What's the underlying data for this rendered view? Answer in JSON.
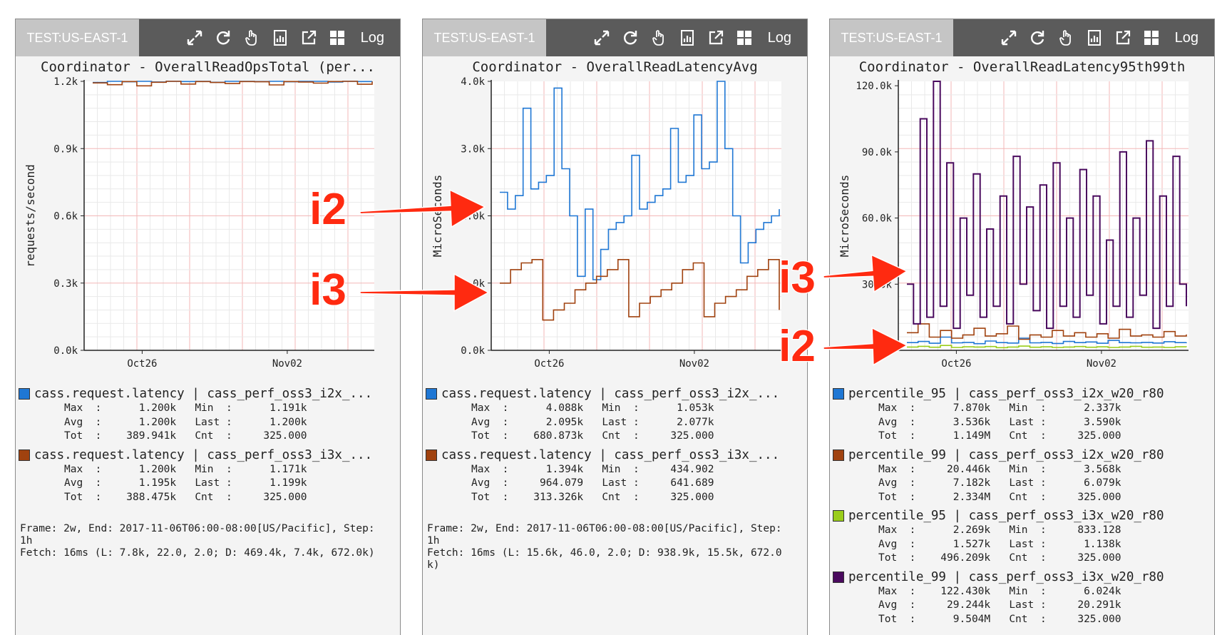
{
  "panels": [
    {
      "tab": "TEST:US-EAST-1",
      "tools": [
        "expand-icon",
        "refresh-icon",
        "pointer-hand-icon",
        "report-icon",
        "popout-icon",
        "grid-icon"
      ],
      "log_label": "Log",
      "title": "Coordinator - OverallReadOpsTotal (per...",
      "chart_data": {
        "type": "line",
        "title": "Coordinator - OverallReadOpsTotal (per...",
        "xlabel": "",
        "ylabel": "requests/second",
        "yticks": [
          "0.0k",
          "0.3k",
          "0.6k",
          "0.9k",
          "1.2k"
        ],
        "ylim": [
          0,
          1200
        ],
        "xticks": [
          "Oct26",
          "Nov02"
        ],
        "grid": true,
        "series": [
          {
            "name": "cass.request.latency | cass_perf_oss3_i2x_...",
            "color": "#1f77d4",
            "values": [
              1195,
              1200,
              1198,
              1200,
              1197,
              1200,
              1199,
              1200,
              1196,
              1200,
              1200,
              1199,
              1200,
              1198,
              1200,
              1200,
              1197,
              1200,
              1199,
              1200
            ]
          },
          {
            "name": "cass.request.latency | cass_perf_oss3_i3x_...",
            "color": "#a0420f",
            "values": [
              1193,
              1185,
              1199,
              1180,
              1196,
              1200,
              1188,
              1199,
              1195,
              1190,
              1199,
              1198,
              1184,
              1199,
              1197,
              1192,
              1199,
              1200,
              1187,
              1199
            ]
          }
        ]
      },
      "legend": [
        {
          "color": "#1f77d4",
          "label": "cass.request.latency | cass_perf_oss3_i2x_...",
          "max": "1.200k",
          "min": "1.191k",
          "avg": "1.200k",
          "last": "1.200k",
          "tot": "389.941k",
          "cnt": "325.000"
        },
        {
          "color": "#a0420f",
          "label": "cass.request.latency | cass_perf_oss3_i3x_...",
          "max": "1.200k",
          "min": "1.171k",
          "avg": "1.195k",
          "last": "1.199k",
          "tot": "388.475k",
          "cnt": "325.000"
        }
      ],
      "frame": "Frame: 2w, End: 2017-11-06T06:00-08:00[US/Pacific], Step:\n1h\nFetch: 16ms (L: 7.8k, 22.0, 2.0; D: 469.4k, 7.4k, 672.0k)"
    },
    {
      "tab": "TEST:US-EAST-1",
      "tools": [
        "expand-icon",
        "refresh-icon",
        "pointer-hand-icon",
        "report-icon",
        "popout-icon",
        "grid-icon"
      ],
      "log_label": "Log",
      "title": "Coordinator - OverallReadLatencyAvg",
      "chart_data": {
        "type": "line",
        "title": "Coordinator - OverallReadLatencyAvg",
        "xlabel": "",
        "ylabel": "MicroSeconds",
        "yticks": [
          "0.0k",
          "1.0k",
          "2.0k",
          "3.0k",
          "4.0k"
        ],
        "ylim": [
          0,
          4000
        ],
        "xticks": [
          "Oct26",
          "Nov02"
        ],
        "grid": true,
        "series": [
          {
            "name": "cass.request.latency | cass_perf_oss3_i2x_...",
            "color": "#1f77d4",
            "values": [
              2350,
              2100,
              2300,
              3600,
              2400,
              2500,
              2600,
              3900,
              2700,
              2000,
              1100,
              2100,
              1050,
              1500,
              1800,
              1900,
              2000,
              2900,
              2100,
              2200,
              2300,
              2400,
              3300,
              2500,
              2600,
              3500,
              2700,
              2800,
              4100,
              3000,
              2000,
              1300,
              1600,
              1800,
              1900,
              2000,
              2100
            ]
          },
          {
            "name": "cass.request.latency | cass_perf_oss3_i3x_...",
            "color": "#a0420f",
            "values": [
              1000,
              1200,
              1300,
              1350,
              450,
              600,
              700,
              900,
              1000,
              1100,
              1200,
              1350,
              500,
              700,
              800,
              900,
              1000,
              1200,
              1300,
              500,
              700,
              800,
              900,
              1100,
              1200,
              1350,
              600
            ]
          }
        ]
      },
      "legend": [
        {
          "color": "#1f77d4",
          "label": "cass.request.latency | cass_perf_oss3_i2x_...",
          "max": "4.088k",
          "min": "1.053k",
          "avg": "2.095k",
          "last": "2.077k",
          "tot": "680.873k",
          "cnt": "325.000"
        },
        {
          "color": "#a0420f",
          "label": "cass.request.latency | cass_perf_oss3_i3x_...",
          "max": "1.394k",
          "min": "434.902",
          "avg": "964.079",
          "last": "641.689",
          "tot": "313.326k",
          "cnt": "325.000"
        }
      ],
      "frame": "Frame: 2w, End: 2017-11-06T06:00-08:00[US/Pacific], Step:\n1h\nFetch: 16ms (L: 15.6k, 46.0, 2.0; D: 938.9k, 15.5k, 672.0\nk)"
    },
    {
      "tab": "TEST:US-EAST-1",
      "tools": [
        "expand-icon",
        "refresh-icon",
        "pointer-hand-icon",
        "report-icon",
        "popout-icon",
        "grid-icon"
      ],
      "log_label": "Log",
      "title": "Coordinator - OverallReadLatency95th99th",
      "chart_data": {
        "type": "line",
        "title": "Coordinator - OverallReadLatency95th99th",
        "xlabel": "",
        "ylabel": "MicroSeconds",
        "yticks": [
          "30.0k",
          "60.0k",
          "90.0k",
          "120.0k"
        ],
        "ylim": [
          0,
          122000
        ],
        "xticks": [
          "Oct26",
          "Nov02"
        ],
        "grid": true,
        "series": [
          {
            "name": "percentile_95 | cass_perf_oss3_i2x_w20_r80",
            "color": "#1f77d4",
            "values": [
              3500,
              4000,
              3200,
              6000,
              3400,
              3600,
              3000,
              4200,
              3500,
              3300,
              5500,
              3400,
              3600,
              3100,
              4000,
              3500,
              3800,
              3200,
              4500,
              3500,
              3400,
              3600,
              3300,
              3900,
              3500,
              3600
            ]
          },
          {
            "name": "percentile_99 | cass_perf_oss3_i2x_w20_r80",
            "color": "#a0420f",
            "values": [
              8000,
              12000,
              6000,
              9000,
              5500,
              7000,
              10000,
              6500,
              7500,
              11000,
              5000,
              7000,
              6000,
              9000,
              6500,
              8000,
              6000,
              7500,
              5500,
              9500,
              6500,
              7000,
              6000,
              8500,
              6500,
              7200
            ]
          },
          {
            "name": "percentile_95 | cass_perf_oss3_i3x_w20_r80",
            "color": "#9acd1a",
            "values": [
              1500,
              1800,
              1400,
              2200,
              1300,
              1600,
              1500,
              1700,
              1200,
              1500,
              1900,
              1400,
              1600,
              1300,
              1500,
              1700,
              1400,
              1600,
              1300,
              1500,
              1800,
              1400,
              1500,
              1300,
              1600,
              1500
            ]
          },
          {
            "name": "percentile_99 | cass_perf_oss3_i3x_w20_r80",
            "color": "#4a0a5e",
            "values": [
              30000,
              12000,
              105000,
              15000,
              122000,
              20000,
              85000,
              10000,
              60000,
              25000,
              80000,
              15000,
              55000,
              20000,
              70000,
              12000,
              88000,
              30000,
              65000,
              18000,
              75000,
              10000,
              85000,
              20000,
              60000,
              15000,
              82000,
              25000,
              70000,
              12000,
              50000,
              20000,
              90000,
              15000,
              60000,
              25000,
              95000,
              10000,
              70000,
              20000,
              88000,
              30000,
              20000
            ]
          }
        ]
      },
      "legend": [
        {
          "color": "#1f77d4",
          "label": "percentile_95 | cass_perf_oss3_i2x_w20_r80",
          "max": "7.870k",
          "min": "2.337k",
          "avg": "3.536k",
          "last": "3.590k",
          "tot": "1.149M",
          "cnt": "325.000"
        },
        {
          "color": "#a0420f",
          "label": "percentile_99 | cass_perf_oss3_i2x_w20_r80",
          "max": "20.446k",
          "min": "3.568k",
          "avg": "7.182k",
          "last": "6.079k",
          "tot": "2.334M",
          "cnt": "325.000"
        },
        {
          "color": "#9acd1a",
          "label": "percentile_95 | cass_perf_oss3_i3x_w20_r80",
          "max": "2.269k",
          "min": "833.128",
          "avg": "1.527k",
          "last": "1.138k",
          "tot": "496.209k",
          "cnt": "325.000"
        },
        {
          "color": "#4a0a5e",
          "label": "percentile_99 | cass_perf_oss3_i3x_w20_r80",
          "max": "122.430k",
          "min": "6.024k",
          "avg": "29.244k",
          "last": "20.291k",
          "tot": "9.504M",
          "cnt": "325.000"
        }
      ],
      "frame": ""
    }
  ],
  "stat_labels": {
    "max": "Max",
    "min": "Min",
    "avg": "Avg",
    "last": "Last",
    "tot": "Tot",
    "cnt": "Cnt"
  },
  "annotations": [
    {
      "label": "i2",
      "color": "#ff2a10"
    },
    {
      "label": "i3",
      "color": "#ff2a10"
    },
    {
      "label": "i3",
      "color": "#ff2a10"
    },
    {
      "label": "i2",
      "color": "#ff2a10"
    }
  ]
}
